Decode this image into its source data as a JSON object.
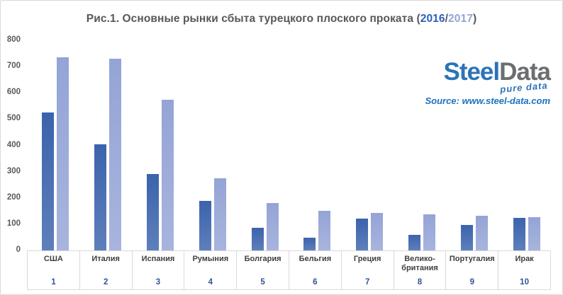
{
  "title": {
    "prefix": "Рис.1. Основные рынки сбыта турецкого плоского проката (",
    "year1": "2016",
    "separator": "/",
    "year2": "2017",
    "suffix": ")"
  },
  "logo": {
    "part1": "Steel",
    "part2": "Data",
    "tagline": "pure data"
  },
  "source": {
    "label": "Source:",
    "url": "www.steel-data.com"
  },
  "colors": {
    "bar_2016": "#3b63ac",
    "bar_2017": "#94a4d6",
    "title_text": "#57585a",
    "title_year1": "#2e5ebf",
    "title_year2": "#94a4d6",
    "logo_steel": "#2c73b8",
    "logo_data": "#6b6d70",
    "source_text": "#1c72be",
    "rank_text": "#2f5496",
    "category_text": "#3f3f3f",
    "axis_text": "#595959",
    "table_border": "#d9d9d9"
  },
  "chart_data": {
    "type": "bar",
    "title": "Рис.1. Основные рынки сбыта турецкого плоского проката (2016/2017)",
    "categories": [
      "США",
      "Италия",
      "Испания",
      "Румыния",
      "Болгария",
      "Бельгия",
      "Греция",
      "Велико-британия",
      "Португалия",
      "Ирак"
    ],
    "ranks": [
      "1",
      "2",
      "3",
      "4",
      "5",
      "6",
      "7",
      "8",
      "9",
      "10"
    ],
    "series": [
      {
        "name": "2016",
        "color": "#3b63ac",
        "values": [
          525,
          405,
          290,
          190,
          85,
          48,
          122,
          60,
          98,
          123
        ]
      },
      {
        "name": "2017",
        "color": "#94a4d6",
        "values": [
          735,
          730,
          575,
          275,
          180,
          150,
          142,
          137,
          133,
          127
        ]
      }
    ],
    "ylim": [
      0,
      800
    ],
    "ytick_step": 100,
    "yticks": [
      0,
      100,
      200,
      300,
      400,
      500,
      600,
      700,
      800
    ],
    "grid": false,
    "legend": "none",
    "xlabel": "",
    "ylabel": ""
  }
}
